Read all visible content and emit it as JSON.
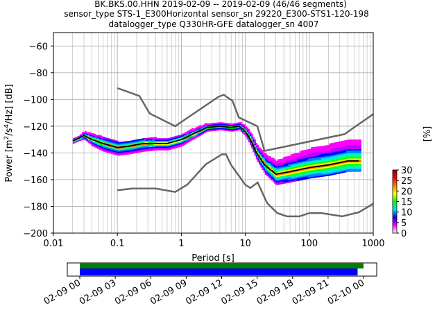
{
  "header": {
    "title_lines": [
      "BK.BKS.00.HHN   2019-02-09 -- 2019-02-09  (46/46 segments)",
      "sensor_type STS-1_E300Horizontal sensor_sn 29220_E300-STS1-120-198",
      "datalogger_type Q330HR-GFE datalogger_sn 4007"
    ]
  },
  "colorbar": {
    "label": "[%]",
    "ticks": [
      "0",
      "5",
      "10",
      "15",
      "20",
      "25",
      "30"
    ],
    "range": [
      0,
      30
    ],
    "colors": [
      "#ffffff",
      "#ff00ff",
      "#0000ff",
      "#00e5e5",
      "#00ff00",
      "#ffff00",
      "#ff7f00",
      "#ff0000",
      "#7f0000"
    ]
  },
  "timeline": {
    "ticks": [
      "02-09 00",
      "02-09 03",
      "02-09 06",
      "02-09 09",
      "02-09 12",
      "02-09 15",
      "02-09 18",
      "02-09 21",
      "02-10 00"
    ],
    "green_bar": {
      "start_hour": 0,
      "end_hour": 24,
      "color": "#008000"
    },
    "blue_bar": {
      "start_hour": 0,
      "end_hour": 23.5,
      "color": "#0000ff"
    }
  },
  "chart_data": {
    "type": "heatmap",
    "title": "",
    "xlabel": "Period [s]",
    "ylabel": "Power [m²/s⁴/Hz] [dB]",
    "xscale": "log",
    "xlim": [
      0.01,
      1000
    ],
    "ylim": [
      -200,
      -50
    ],
    "x_ticks": [
      {
        "value": 0.01,
        "label": "0.01"
      },
      {
        "value": 0.1,
        "label": "0.1"
      },
      {
        "value": 1,
        "label": "1"
      },
      {
        "value": 10,
        "label": "10"
      },
      {
        "value": 100,
        "label": "100"
      },
      {
        "value": 1000,
        "label": "1000"
      }
    ],
    "y_ticks": [
      {
        "value": -60,
        "label": "−60"
      },
      {
        "value": -80,
        "label": "−80"
      },
      {
        "value": -100,
        "label": "−100"
      },
      {
        "value": -120,
        "label": "−120"
      },
      {
        "value": -140,
        "label": "−140"
      },
      {
        "value": -160,
        "label": "−160"
      },
      {
        "value": -180,
        "label": "−180"
      },
      {
        "value": -200,
        "label": "−200"
      }
    ],
    "grid": true,
    "noise_model_high": {
      "name": "NHNM",
      "x": [
        0.1,
        0.22,
        0.32,
        0.8,
        3.8,
        4.6,
        6.3,
        7.9,
        15.4,
        20,
        354.8,
        1000
      ],
      "y": [
        -91.5,
        -97.4,
        -110.5,
        -120,
        -98,
        -96.5,
        -101,
        -113.5,
        -120,
        -138.5,
        -126,
        -111
      ]
    },
    "noise_model_low": {
      "name": "NLNM",
      "x": [
        0.1,
        0.17,
        0.4,
        0.8,
        1.24,
        2.4,
        4.3,
        5.0,
        6.0,
        10.0,
        12.0,
        15.6,
        21.9,
        31.6,
        45.0,
        70.0,
        101.0,
        154.0,
        328.0,
        600.0,
        1000.0
      ],
      "y": [
        -168,
        -166.7,
        -166.7,
        -169.2,
        -163.7,
        -148.6,
        -141.1,
        -141.1,
        -149.0,
        -163.8,
        -166.2,
        -162.1,
        -177.5,
        -185.0,
        -187.5,
        -187.5,
        -185.0,
        -185.0,
        -187.5,
        -184.4,
        -178.0
      ]
    },
    "median": {
      "name": "median",
      "x": [
        0.02,
        0.025,
        0.03,
        0.04,
        0.06,
        0.1,
        0.15,
        0.25,
        0.4,
        0.6,
        1.0,
        1.5,
        2.5,
        4.0,
        6.0,
        8.0,
        10.0,
        12.0,
        15.0,
        20.0,
        30.0,
        50.0,
        100.0,
        200.0,
        400.0,
        600.0
      ],
      "y": [
        -131,
        -129,
        -127,
        -130,
        -133,
        -136,
        -135,
        -133,
        -133,
        -133,
        -130,
        -126,
        -121,
        -120,
        -121,
        -120,
        -124,
        -130,
        -140,
        -149,
        -156,
        -154,
        -151,
        -149,
        -146,
        -146
      ]
    },
    "density_band": {
      "upper_offset_db": [
        2,
        2,
        3,
        4,
        5,
        4,
        4,
        4,
        4,
        4,
        4,
        4,
        3,
        3,
        3,
        3,
        4,
        5,
        6,
        8,
        10,
        12,
        14,
        15,
        16,
        16
      ],
      "lower_offset_db": [
        2,
        2,
        3,
        5,
        6,
        6,
        6,
        6,
        5,
        5,
        5,
        4,
        3,
        3,
        3,
        3,
        4,
        5,
        6,
        7,
        8,
        8,
        8,
        8,
        8,
        8
      ]
    }
  }
}
